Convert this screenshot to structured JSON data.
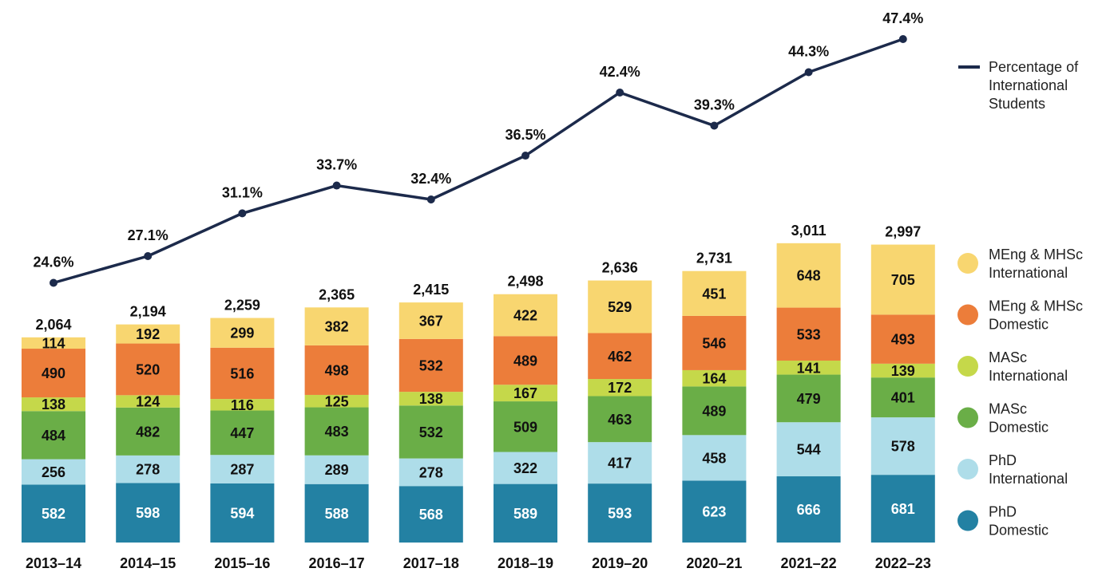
{
  "chart_data": {
    "type": "bar",
    "stacked": true,
    "categories": [
      "2013–14",
      "2014–15",
      "2015–16",
      "2016–17",
      "2017–18",
      "2018–19",
      "2019–20",
      "2020–21",
      "2021–22",
      "2022–23"
    ],
    "series": [
      {
        "name": "PhD Domestic",
        "legend_lines": [
          "PhD",
          "Domestic"
        ],
        "color": "#2381A3",
        "label_color": "#ffffff",
        "values": [
          582,
          598,
          594,
          588,
          568,
          589,
          593,
          623,
          666,
          681
        ]
      },
      {
        "name": "PhD International",
        "legend_lines": [
          "PhD",
          "International"
        ],
        "color": "#AEDDE9",
        "label_color": "#111111",
        "values": [
          256,
          278,
          287,
          289,
          278,
          322,
          417,
          458,
          544,
          578
        ]
      },
      {
        "name": "MASc Domestic",
        "legend_lines": [
          "MASc",
          "Domestic"
        ],
        "color": "#6AAE47",
        "label_color": "#111111",
        "values": [
          484,
          482,
          447,
          483,
          532,
          509,
          463,
          489,
          479,
          401
        ]
      },
      {
        "name": "MASc International",
        "legend_lines": [
          "MASc",
          "International"
        ],
        "color": "#C5D84A",
        "label_color": "#111111",
        "values": [
          138,
          124,
          116,
          125,
          138,
          167,
          172,
          164,
          141,
          139
        ]
      },
      {
        "name": "MEng & MHSc Domestic",
        "legend_lines": [
          "MEng & MHSc",
          "Domestic"
        ],
        "color": "#EC7D3A",
        "label_color": "#111111",
        "values": [
          490,
          520,
          516,
          498,
          532,
          489,
          462,
          546,
          533,
          493
        ]
      },
      {
        "name": "MEng & MHSc International",
        "legend_lines": [
          "MEng & MHSc",
          "International"
        ],
        "color": "#F8D670",
        "label_color": "#111111",
        "values": [
          114,
          192,
          299,
          382,
          367,
          422,
          529,
          451,
          648,
          705
        ]
      }
    ],
    "totals": [
      "2,064",
      "2,194",
      "2,259",
      "2,365",
      "2,415",
      "2,498",
      "2,636",
      "2,731",
      "3,011",
      "2,997"
    ],
    "line_series": {
      "name": "Percentage of International Students",
      "legend_lines": [
        "Percentage of",
        "International",
        "Students"
      ],
      "color": "#1C2A4B",
      "values": [
        24.6,
        27.1,
        31.1,
        33.7,
        32.4,
        36.5,
        42.4,
        39.3,
        44.3,
        47.4
      ],
      "labels": [
        "24.6%",
        "27.1%",
        "31.1%",
        "33.7%",
        "32.4%",
        "36.5%",
        "42.4%",
        "39.3%",
        "44.3%",
        "47.4%"
      ]
    },
    "title": "",
    "xlabel": "",
    "ylabel": "",
    "grid": false,
    "legend_position": "right"
  }
}
